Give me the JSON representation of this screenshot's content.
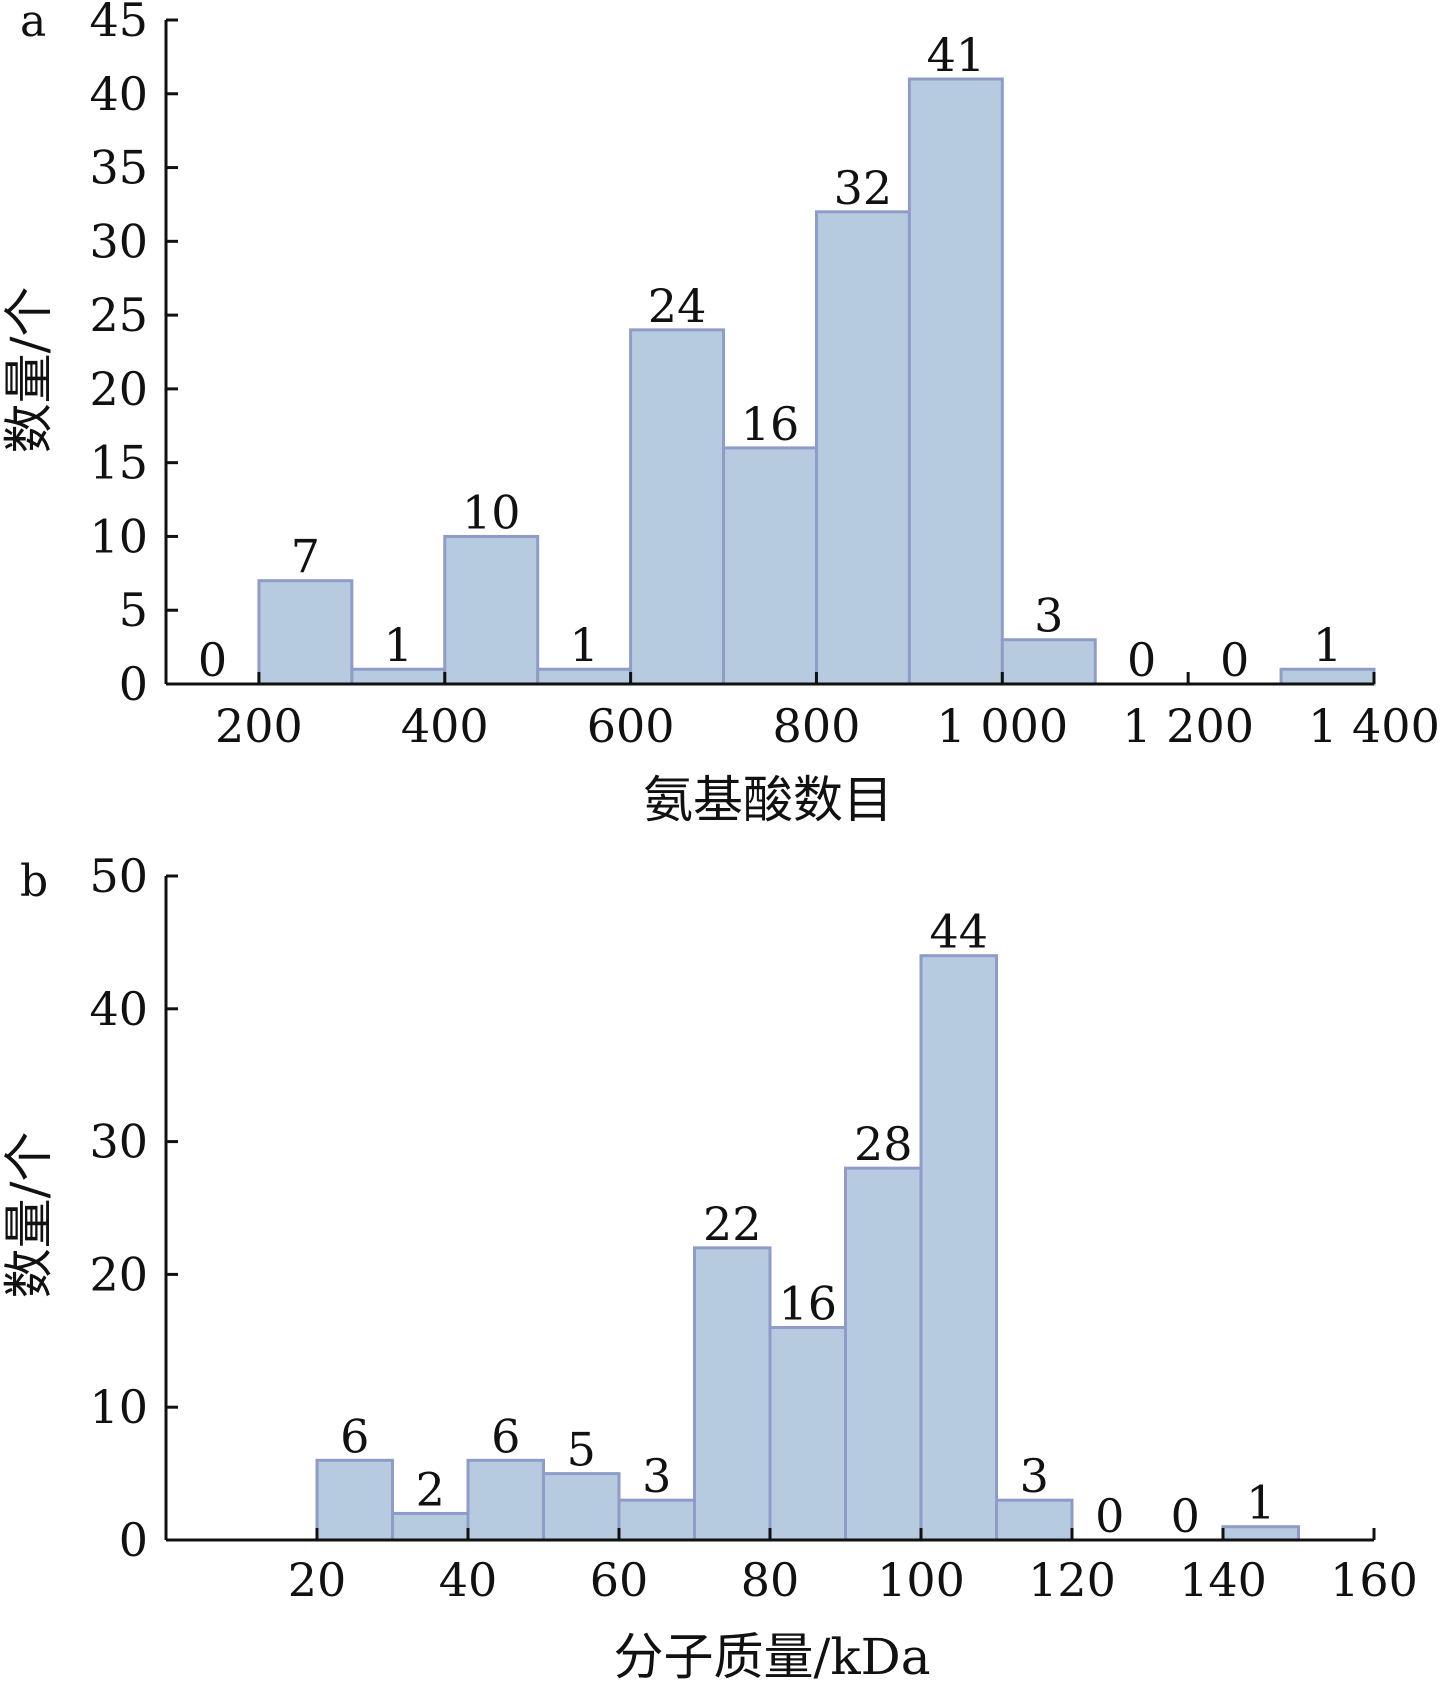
{
  "colors": {
    "bar_fill": "#b6cbdf",
    "bar_stroke": "#8f9cc9",
    "axis": "#111111"
  },
  "chart_data": [
    {
      "type": "bar",
      "panel_label": "a",
      "title": "",
      "xlabel": "氨基酸数目",
      "ylabel": "数量/个",
      "bin_edges": [
        100,
        200,
        300,
        400,
        500,
        600,
        700,
        800,
        900,
        1000,
        1100,
        1200,
        1300,
        1400
      ],
      "values": [
        0,
        7,
        1,
        10,
        1,
        24,
        16,
        32,
        41,
        3,
        0,
        0,
        1
      ],
      "data_labels": [
        "0",
        "7",
        "1",
        "10",
        "1",
        "24",
        "16",
        "32",
        "41",
        "3",
        "0",
        "0",
        "1"
      ],
      "xlim": [
        100,
        1400
      ],
      "ylim": [
        0,
        45
      ],
      "x_ticks": [
        200,
        400,
        600,
        800,
        1000,
        1200,
        1400
      ],
      "x_tick_labels": [
        "200",
        "400",
        "600",
        "800",
        "1 000",
        "1 200",
        "1 400"
      ],
      "y_ticks": [
        0,
        5,
        10,
        15,
        20,
        25,
        30,
        35,
        40,
        45
      ],
      "y_tick_labels": [
        "0",
        "5",
        "10",
        "15",
        "20",
        "25",
        "30",
        "35",
        "40",
        "45"
      ],
      "grid": false,
      "legend": "none"
    },
    {
      "type": "bar",
      "panel_label": "b",
      "title": "",
      "xlabel": "分子质量/kDa",
      "ylabel": "数量/个",
      "bin_edges": [
        20,
        30,
        40,
        50,
        60,
        70,
        80,
        90,
        100,
        110,
        120,
        130,
        140,
        150
      ],
      "values": [
        6,
        2,
        6,
        5,
        3,
        22,
        16,
        28,
        44,
        3,
        0,
        0,
        1
      ],
      "data_labels": [
        "6",
        "2",
        "6",
        "5",
        "3",
        "22",
        "16",
        "28",
        "44",
        "3",
        "0",
        "0",
        "1"
      ],
      "xlim": [
        0,
        160
      ],
      "ylim": [
        0,
        50
      ],
      "x_ticks": [
        20,
        40,
        60,
        80,
        100,
        120,
        140,
        160
      ],
      "x_tick_labels": [
        "20",
        "40",
        "60",
        "80",
        "100",
        "120",
        "140",
        "160"
      ],
      "y_ticks": [
        0,
        10,
        20,
        30,
        40,
        50
      ],
      "y_tick_labels": [
        "0",
        "10",
        "20",
        "30",
        "40",
        "50"
      ],
      "grid": false,
      "legend": "none"
    }
  ]
}
